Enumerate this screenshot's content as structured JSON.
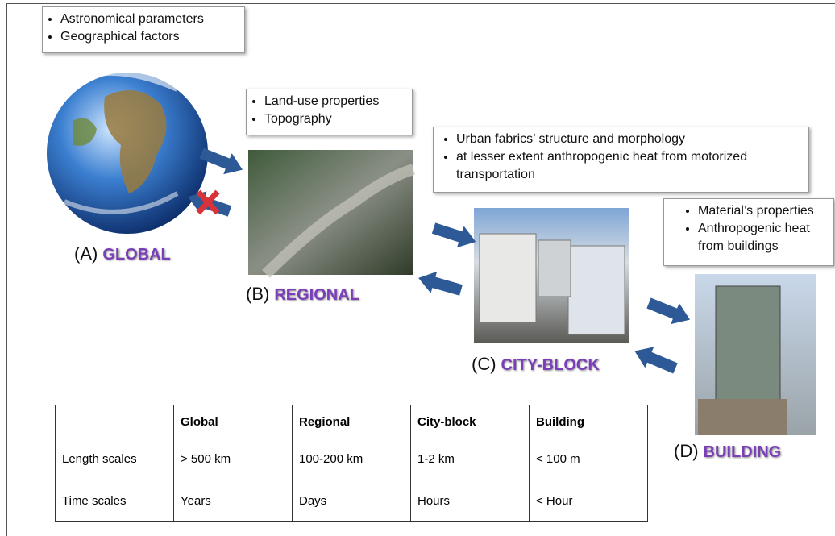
{
  "scales": [
    {
      "letter": "(A)",
      "name": "GLOBAL",
      "factors": [
        "Astronomical parameters",
        "Geographical factors"
      ]
    },
    {
      "letter": "(B)",
      "name": "REGIONAL",
      "factors": [
        "Land-use properties",
        "Topography"
      ]
    },
    {
      "letter": "(C)",
      "name": "CITY-BLOCK",
      "factors": [
        "Urban fabrics’ structure and morphology",
        "at lesser extent anthropogenic heat from motorized transportation"
      ]
    },
    {
      "letter": "(D)",
      "name": "BUILDING",
      "factors": [
        "Material’s properties",
        "Anthropogenic heat from buildings"
      ]
    }
  ],
  "table": {
    "header": [
      "Global",
      "Regional",
      "City-block",
      "Building"
    ],
    "rows": [
      [
        "Length scales",
        "> 500 km",
        "100-200 km",
        "1-2 km",
        "< 100 m"
      ],
      [
        "Time scales",
        "Years",
        "Days",
        "Hours",
        "< Hour"
      ]
    ]
  }
}
